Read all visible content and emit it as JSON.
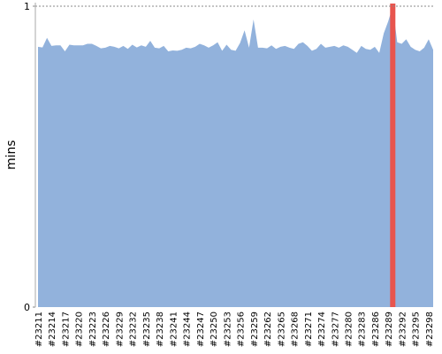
{
  "chart_data": {
    "type": "area",
    "y_label": "mins",
    "ylim": [
      0,
      1
    ],
    "yticks": [
      0,
      1
    ],
    "grid": true,
    "categories": [
      "#23211",
      null,
      null,
      "#23214",
      null,
      null,
      "#23217",
      null,
      null,
      "#23220",
      null,
      null,
      "#23223",
      null,
      null,
      "#23226",
      null,
      null,
      "#23229",
      null,
      null,
      "#23232",
      null,
      null,
      "#23235",
      null,
      null,
      "#23238",
      null,
      null,
      "#23241",
      null,
      null,
      "#23244",
      null,
      null,
      "#23247",
      null,
      null,
      "#23250",
      null,
      null,
      "#23253",
      null,
      null,
      "#23256",
      null,
      null,
      "#23259",
      null,
      null,
      "#23262",
      null,
      null,
      "#23265",
      null,
      null,
      "#23268",
      null,
      null,
      "#23271",
      null,
      null,
      "#23274",
      null,
      null,
      "#23277",
      null,
      null,
      "#23280",
      null,
      null,
      "#23283",
      null,
      null,
      "#23286",
      null,
      null,
      "#23289",
      null,
      null,
      "#23292",
      null,
      null,
      "#23295",
      null,
      null,
      "#23298",
      null
    ],
    "series": [
      {
        "type": "area",
        "color": "#92b2dc",
        "values": [
          0.865,
          0.863,
          0.895,
          0.868,
          0.87,
          0.87,
          0.85,
          0.872,
          0.87,
          0.87,
          0.87,
          0.875,
          0.875,
          0.868,
          0.86,
          0.862,
          0.868,
          0.865,
          0.86,
          0.868,
          0.858,
          0.872,
          0.863,
          0.87,
          0.865,
          0.885,
          0.862,
          0.86,
          0.868,
          0.85,
          0.853,
          0.852,
          0.855,
          0.862,
          0.86,
          0.865,
          0.875,
          0.87,
          0.862,
          0.87,
          0.88,
          0.852,
          0.872,
          0.855,
          0.852,
          0.878,
          0.92,
          0.862,
          0.956,
          0.862,
          0.862,
          0.86,
          0.87,
          0.858,
          0.865,
          0.868,
          0.862,
          0.858,
          0.875,
          0.88,
          0.868,
          0.852,
          0.858,
          0.875,
          0.862,
          0.865,
          0.868,
          0.862,
          0.87,
          0.865,
          0.855,
          0.845,
          0.868,
          0.858,
          0.855,
          0.865,
          0.845,
          0.91,
          0.95,
          1,
          0.88,
          0.875,
          0.89,
          0.865,
          0.855,
          0.85,
          0.862,
          0.89,
          0.855
        ]
      },
      {
        "type": "bar",
        "color": "#e8554e",
        "values": [
          null,
          null,
          null,
          null,
          null,
          null,
          null,
          null,
          null,
          null,
          null,
          null,
          null,
          null,
          null,
          null,
          null,
          null,
          null,
          null,
          null,
          null,
          null,
          null,
          null,
          null,
          null,
          null,
          null,
          null,
          null,
          null,
          null,
          null,
          null,
          null,
          null,
          null,
          null,
          null,
          null,
          null,
          null,
          null,
          null,
          null,
          null,
          null,
          null,
          null,
          null,
          null,
          null,
          null,
          null,
          null,
          null,
          null,
          null,
          null,
          null,
          null,
          null,
          null,
          null,
          null,
          null,
          null,
          null,
          null,
          null,
          null,
          null,
          null,
          null,
          null,
          null,
          null,
          null,
          1,
          null,
          null,
          null,
          null,
          null,
          null,
          null,
          null,
          null
        ]
      }
    ]
  }
}
